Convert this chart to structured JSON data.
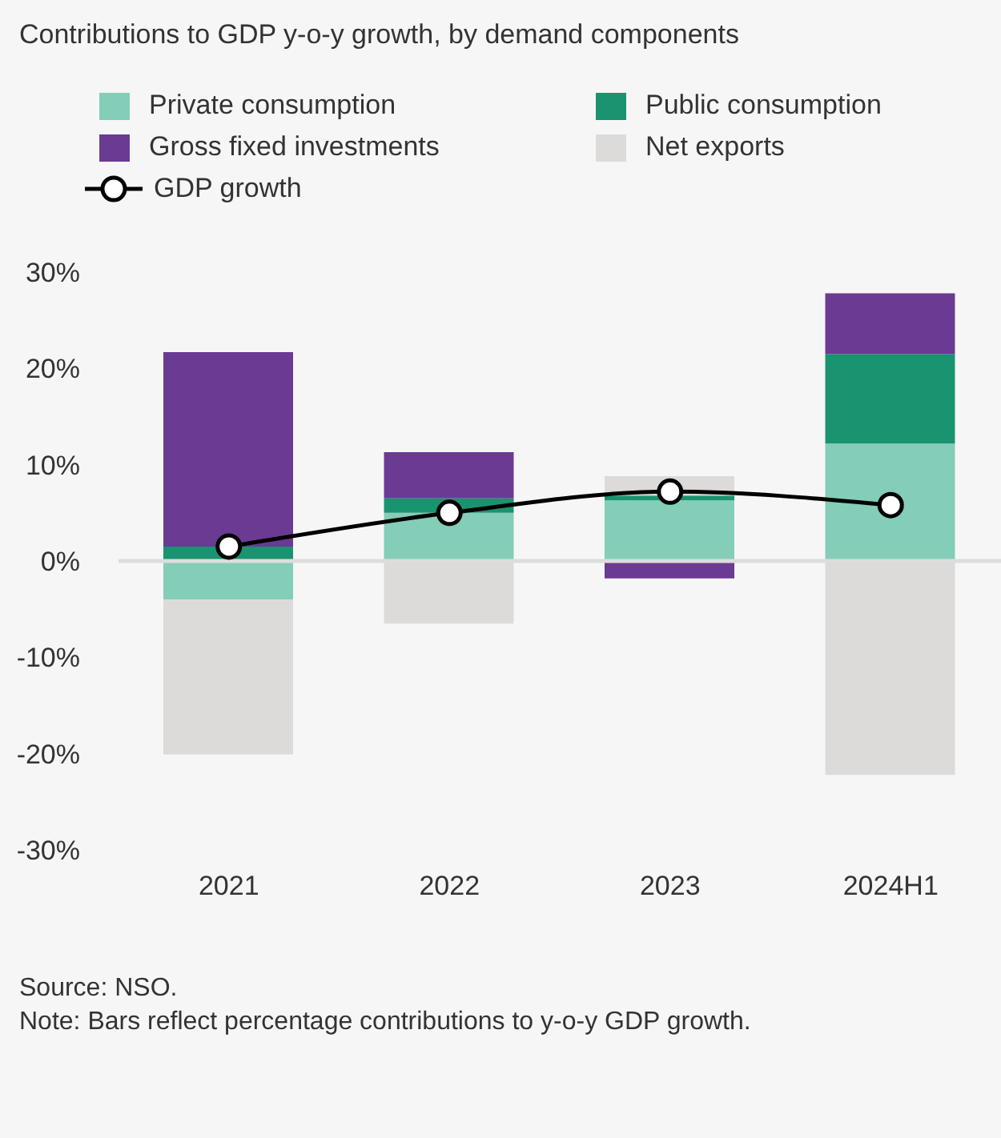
{
  "chart_data": {
    "type": "bar",
    "stacked": true,
    "title": "Contributions to GDP y-o-y growth, by demand components",
    "categories": [
      "2021",
      "2022",
      "2023",
      "2024H1"
    ],
    "series": [
      {
        "name": "Private consumption",
        "color": "#84cdb8",
        "values": [
          -4.0,
          5.0,
          6.3,
          12.2
        ]
      },
      {
        "name": "Public consumption",
        "color": "#1a9370",
        "values": [
          1.5,
          1.5,
          0.5,
          9.3
        ]
      },
      {
        "name": "Gross fixed investments",
        "color": "#6b3a93",
        "values": [
          20.2,
          4.8,
          -1.8,
          6.3
        ]
      },
      {
        "name": "Net exports",
        "color": "#dcdbd9",
        "values": [
          -16.1,
          -6.5,
          2.0,
          -22.2
        ]
      },
      {
        "name": "GDP growth",
        "type": "line",
        "color": "#000000",
        "marker": "circle",
        "values": [
          1.5,
          5.0,
          7.2,
          5.8
        ]
      }
    ],
    "ylim": [
      -30,
      30
    ],
    "yticks": [
      {
        "value": -30,
        "label": "-30%"
      },
      {
        "value": -20,
        "label": "-20%"
      },
      {
        "value": -10,
        "label": "-10%"
      },
      {
        "value": 0,
        "label": "0%"
      },
      {
        "value": 10,
        "label": "10%"
      },
      {
        "value": 20,
        "label": "20%"
      },
      {
        "value": 30,
        "label": "30%"
      }
    ],
    "ref_lines": [
      {
        "axis": "y",
        "value": 0,
        "color": "#dddddd"
      }
    ],
    "grid": false,
    "legend": "top",
    "annotations": [
      "Source: NSO.",
      "Note: Bars reflect percentage contributions to y-o-y GDP growth."
    ]
  }
}
